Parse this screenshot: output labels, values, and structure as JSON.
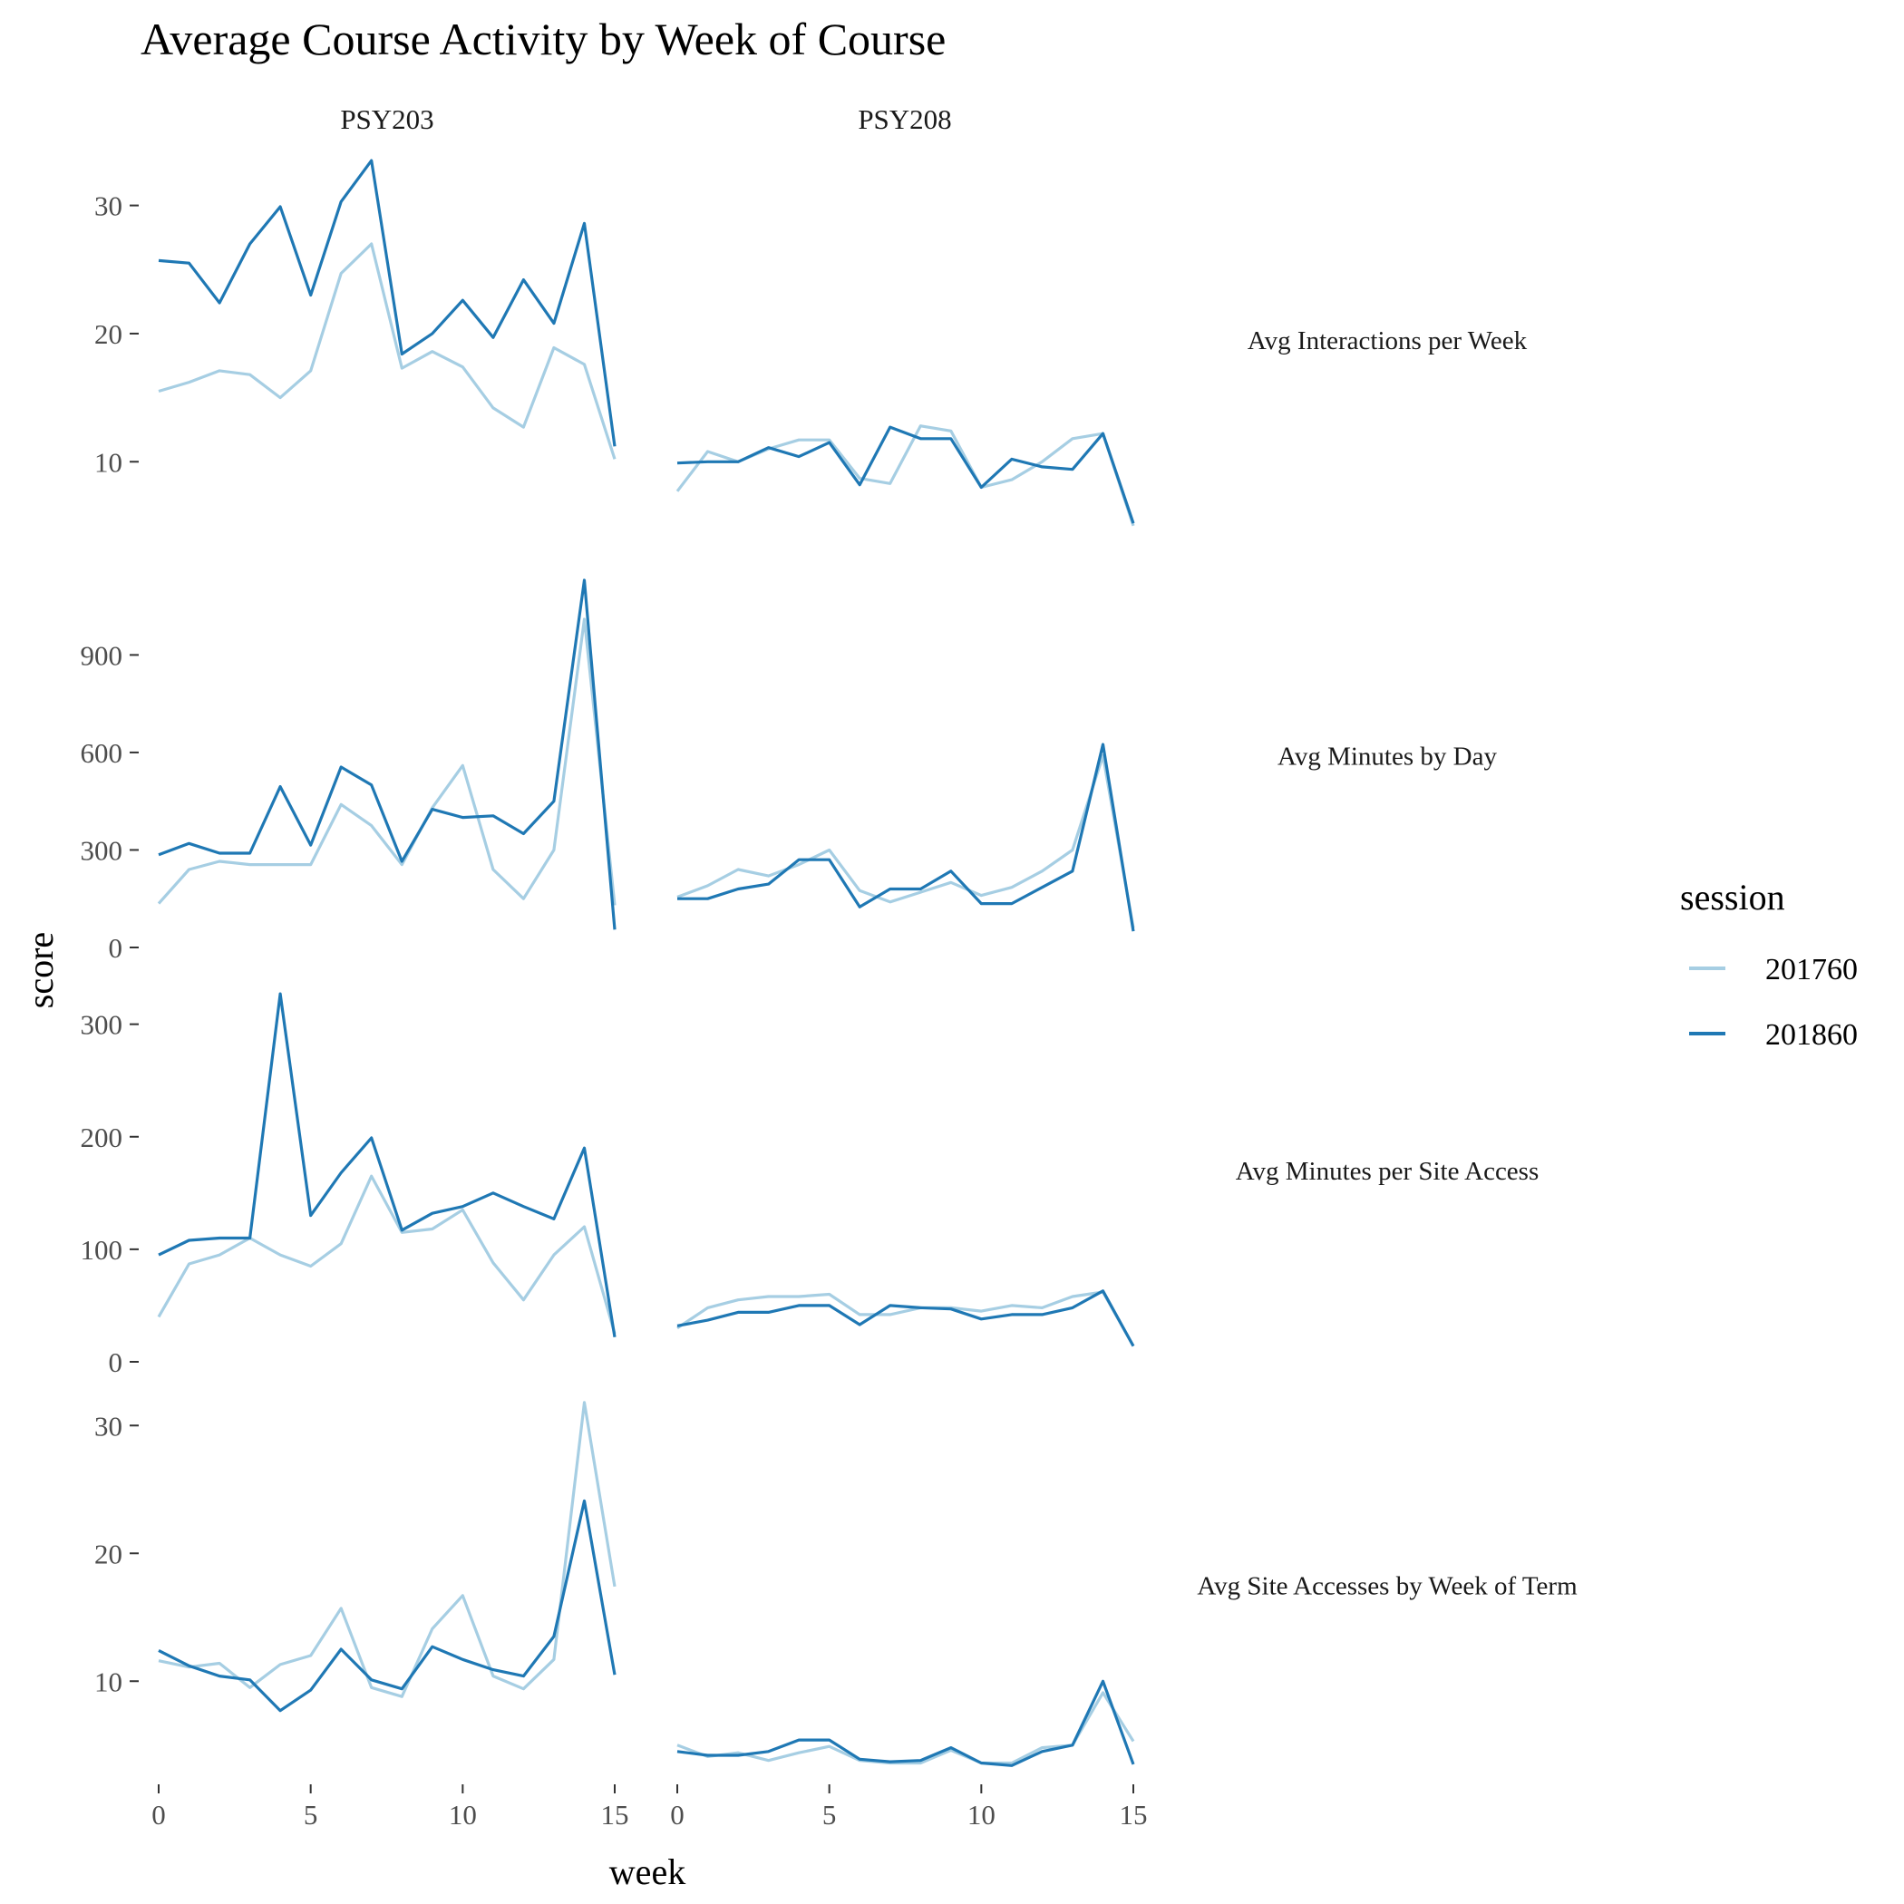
{
  "chart_data": {
    "type": "line",
    "title": "Average Course Activity by Week of Course",
    "xlabel": "week",
    "ylabel": "score",
    "x": [
      0,
      1,
      2,
      3,
      4,
      5,
      6,
      7,
      8,
      9,
      10,
      11,
      12,
      13,
      14,
      15
    ],
    "x_ticks": [
      0,
      5,
      10,
      15
    ],
    "columns": [
      "PSY203",
      "PSY208"
    ],
    "legend": {
      "title": "session",
      "position": "right",
      "entries": [
        {
          "name": "201760",
          "color": "#a6cee3"
        },
        {
          "name": "201860",
          "color": "#1f78b4"
        }
      ]
    },
    "panels": [
      {
        "metric": "Avg Interactions per Week",
        "ylim": [
          4.5,
          34.5
        ],
        "yticks": [
          10,
          20,
          30
        ],
        "series": {
          "PSY203": {
            "201760": [
              15.5,
              16.2,
              17.1,
              16.8,
              15.0,
              17.1,
              24.7,
              27.0,
              17.3,
              18.6,
              17.4,
              14.2,
              12.7,
              18.9,
              17.6,
              10.2
            ],
            "201860": [
              25.7,
              25.5,
              22.4,
              27.0,
              29.9,
              23.0,
              30.3,
              33.5,
              18.4,
              20.0,
              22.6,
              19.7,
              24.2,
              20.8,
              28.6,
              11.2
            ]
          },
          "PSY208": {
            "201760": [
              7.7,
              10.8,
              10.0,
              11.0,
              11.7,
              11.7,
              8.7,
              8.3,
              12.8,
              12.4,
              8.0,
              8.6,
              10.0,
              11.8,
              12.2,
              5.0
            ],
            "201860": [
              9.9,
              10.0,
              10.0,
              11.1,
              10.4,
              11.5,
              8.2,
              12.7,
              11.8,
              11.8,
              8.0,
              10.2,
              9.6,
              9.4,
              12.2,
              5.2
            ]
          }
        }
      },
      {
        "metric": "Avg Minutes by Day",
        "ylim": [
          0,
          1180
        ],
        "yticks": [
          0,
          300,
          600,
          900
        ],
        "series": {
          "PSY203": {
            "201760": [
              135,
              240,
              265,
              255,
              255,
              255,
              440,
              375,
              255,
              430,
              560,
              240,
              150,
              300,
              1010,
              130
            ],
            "201860": [
              285,
              320,
              290,
              290,
              495,
              315,
              555,
              500,
              265,
              425,
              400,
              405,
              350,
              450,
              1130,
              55
            ]
          },
          "PSY208": {
            "201760": [
              155,
              190,
              240,
              220,
              255,
              300,
              175,
              140,
              170,
              200,
              160,
              185,
              235,
              300,
              590,
              60
            ],
            "201860": [
              150,
              150,
              180,
              195,
              270,
              270,
              125,
              180,
              180,
              235,
              135,
              135,
              185,
              235,
              625,
              50
            ]
          }
        }
      },
      {
        "metric": "Avg Minutes per Site Access",
        "ylim": [
          0,
          340
        ],
        "yticks": [
          0,
          100,
          200,
          300
        ],
        "series": {
          "PSY203": {
            "201760": [
              40,
              87,
              95,
              110,
              95,
              85,
              105,
              165,
              115,
              118,
              135,
              88,
              55,
              95,
              120,
              25
            ],
            "201860": [
              95,
              108,
              110,
              110,
              327,
              130,
              168,
              199,
              117,
              132,
              138,
              150,
              138,
              127,
              190,
              22
            ]
          },
          "PSY208": {
            "201760": [
              30,
              48,
              55,
              58,
              58,
              60,
              42,
              42,
              48,
              48,
              45,
              50,
              48,
              58,
              62,
              14
            ],
            "201860": [
              32,
              37,
              44,
              44,
              50,
              50,
              33,
              50,
              48,
              47,
              38,
              42,
              42,
              48,
              63,
              14
            ]
          }
        }
      },
      {
        "metric": "Avg Site Accesses by Week of Term",
        "ylim": [
          2.5,
          32.5
        ],
        "yticks": [
          10,
          20,
          30
        ],
        "series": {
          "PSY203": {
            "201760": [
              11.6,
              11.1,
              11.4,
              9.5,
              11.3,
              12.0,
              15.7,
              9.5,
              8.8,
              14.1,
              16.7,
              10.4,
              9.4,
              11.7,
              31.8,
              17.4
            ],
            "201860": [
              12.4,
              11.2,
              10.4,
              10.1,
              7.7,
              9.3,
              12.5,
              10.1,
              9.4,
              12.7,
              11.7,
              10.9,
              10.4,
              13.5,
              24.1,
              10.5
            ]
          },
          "PSY208": {
            "201760": [
              5.0,
              4.1,
              4.4,
              3.8,
              4.4,
              4.9,
              3.8,
              3.6,
              3.6,
              4.6,
              3.6,
              3.6,
              4.8,
              5.0,
              9.1,
              5.3
            ],
            "201860": [
              4.5,
              4.2,
              4.2,
              4.5,
              5.4,
              5.4,
              3.9,
              3.7,
              3.8,
              4.8,
              3.6,
              3.4,
              4.5,
              5.0,
              10.0,
              3.5
            ]
          }
        }
      }
    ]
  }
}
